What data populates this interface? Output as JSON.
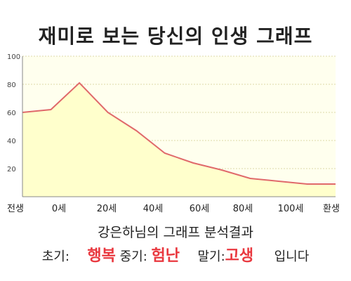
{
  "title": "재미로 보는 당신의 인생 그래프",
  "chart_data": {
    "type": "area",
    "x": [
      0,
      10,
      20,
      30,
      40,
      50,
      60,
      70,
      80,
      90,
      100,
      110
    ],
    "values": [
      60,
      62,
      81,
      60,
      47,
      31,
      24,
      19,
      13,
      11,
      9,
      9
    ],
    "xticks": [
      "전생",
      "0세",
      "20세",
      "40세",
      "60세",
      "80세",
      "100세",
      "환생"
    ],
    "yticks": [
      "20",
      "40",
      "60",
      "80",
      "100"
    ],
    "ylim": [
      0,
      100
    ],
    "grid": true,
    "line_color": "#e0696b",
    "fill_color": "#ffffcc",
    "plot_bg": "#ffffee",
    "grid_color": "#ddd9a8"
  },
  "analysis": {
    "heading": "강은하님의 그래프 분석결과",
    "early_label": "초기:",
    "early_value": "행복",
    "mid_label": "중기:",
    "mid_value": "험난",
    "late_label": "말기:",
    "late_value": "고생",
    "suffix": "입니다"
  }
}
